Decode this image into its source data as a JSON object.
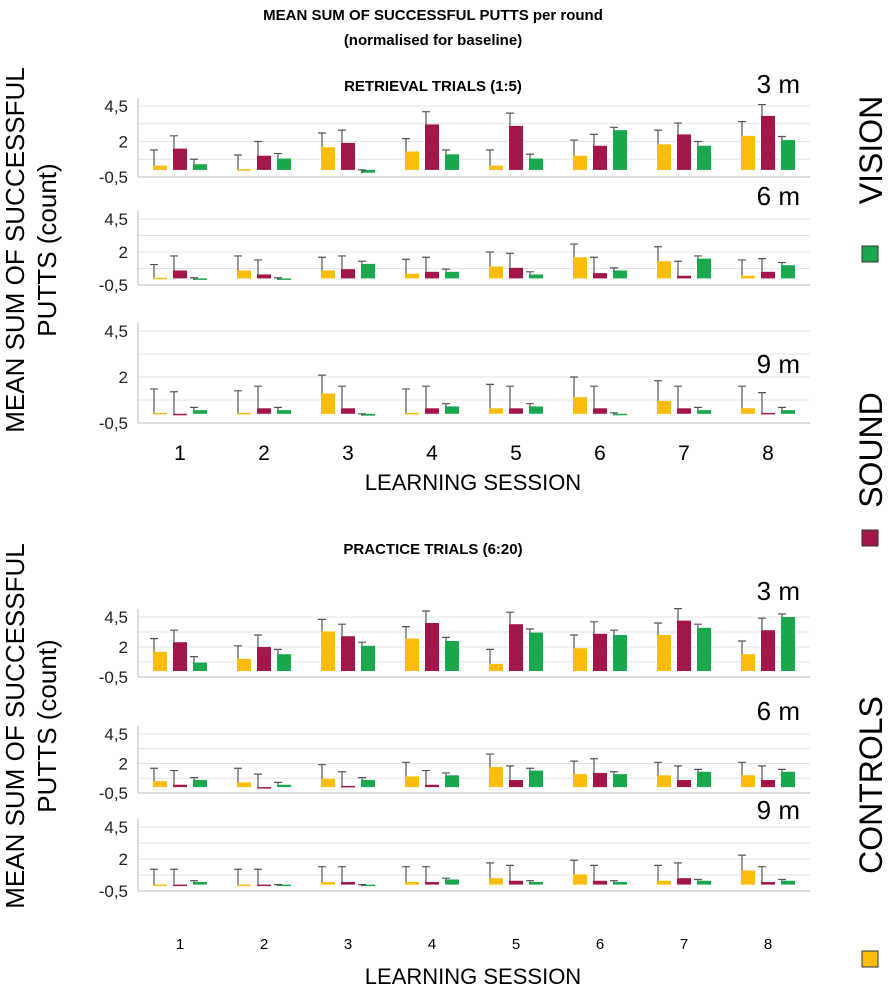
{
  "chart_data": {
    "type": "bar",
    "title": "MEAN SUM OF SUCCESSFUL PUTTS per round",
    "subtitle": "(normalised for baseline)",
    "ylabel_line1": "MEAN SUM OF SUCCESSFUL",
    "ylabel_line2": "PUTTS (count)",
    "xlabel": "LEARNING SESSION",
    "categories": [
      "1",
      "2",
      "3",
      "4",
      "5",
      "6",
      "7",
      "8"
    ],
    "yticks": [
      "4,5",
      "2",
      "-0,5"
    ],
    "ylim": [
      -0.5,
      4.5
    ],
    "legend": [
      {
        "name": "VISION",
        "color": "#1aa84f"
      },
      {
        "name": "SOUND",
        "color": "#a3164a"
      },
      {
        "name": "CONTROLS",
        "color": "#fbbc0a"
      }
    ],
    "colors": {
      "controls": "#fbbc0a",
      "sound": "#a3164a",
      "vision": "#1aa84f"
    },
    "blocks": [
      {
        "title": "RETRIEVAL TRIALS (1:5)",
        "panels": [
          {
            "distance": "3 m",
            "series": [
              {
                "name": "CONTROLS",
                "values": [
                  0.3,
                  0.05,
                  1.6,
                  1.3,
                  0.3,
                  1.0,
                  1.8,
                  2.4
                ],
                "errors": [
                  1.1,
                  1.0,
                  1.0,
                  0.9,
                  1.1,
                  1.1,
                  1.0,
                  1.0
                ]
              },
              {
                "name": "SOUND",
                "values": [
                  1.5,
                  1.0,
                  1.9,
                  3.2,
                  3.1,
                  1.7,
                  2.5,
                  3.8
                ],
                "errors": [
                  0.9,
                  1.0,
                  0.9,
                  0.9,
                  0.9,
                  0.8,
                  0.8,
                  0.8
                ]
              },
              {
                "name": "VISION",
                "values": [
                  0.4,
                  0.8,
                  -0.2,
                  1.1,
                  0.8,
                  2.8,
                  1.7,
                  2.1
                ],
                "errors": [
                  0.35,
                  0.35,
                  0.2,
                  0.3,
                  0.3,
                  0.2,
                  0.3,
                  0.25
                ]
              }
            ]
          },
          {
            "distance": "6 m",
            "series": [
              {
                "name": "CONTROLS",
                "values": [
                  0.05,
                  0.6,
                  0.6,
                  0.35,
                  0.9,
                  1.6,
                  1.3,
                  0.2
                ],
                "errors": [
                  1.0,
                  1.1,
                  1.0,
                  1.1,
                  1.1,
                  1.0,
                  1.1,
                  1.2
                ]
              },
              {
                "name": "SOUND",
                "values": [
                  0.6,
                  0.3,
                  0.7,
                  0.5,
                  0.8,
                  0.4,
                  0.2,
                  0.5
                ],
                "errors": [
                  1.1,
                  1.1,
                  1.0,
                  1.1,
                  1.1,
                  1.2,
                  1.1,
                  1.0
                ]
              },
              {
                "name": "VISION",
                "values": [
                  -0.1,
                  -0.1,
                  1.1,
                  0.5,
                  0.3,
                  0.6,
                  1.5,
                  1.0
                ],
                "errors": [
                  0.15,
                  0.15,
                  0.2,
                  0.2,
                  0.2,
                  0.2,
                  0.2,
                  0.2
                ]
              }
            ]
          },
          {
            "distance": "9 m",
            "series": [
              {
                "name": "CONTROLS",
                "values": [
                  0.05,
                  0.05,
                  1.1,
                  0.05,
                  0.3,
                  0.9,
                  0.7,
                  0.3
                ],
                "errors": [
                  1.3,
                  1.2,
                  1.0,
                  1.3,
                  1.3,
                  1.1,
                  1.1,
                  1.2
                ]
              },
              {
                "name": "SOUND",
                "values": [
                  0.0,
                  0.3,
                  0.3,
                  0.3,
                  0.3,
                  0.3,
                  0.3,
                  0.05
                ],
                "errors": [
                  1.2,
                  1.2,
                  1.2,
                  1.2,
                  1.2,
                  1.2,
                  1.2,
                  1.1
                ]
              },
              {
                "name": "VISION",
                "values": [
                  0.2,
                  0.2,
                  -0.1,
                  0.4,
                  0.4,
                  -0.05,
                  0.2,
                  0.2
                ],
                "errors": [
                  0.15,
                  0.15,
                  0.1,
                  0.15,
                  0.15,
                  0.1,
                  0.15,
                  0.15
                ]
              }
            ]
          }
        ]
      },
      {
        "title": "PRACTICE TRIALS (6:20)",
        "panels": [
          {
            "distance": "3 m",
            "series": [
              {
                "name": "CONTROLS",
                "values": [
                  1.6,
                  1.0,
                  3.3,
                  2.7,
                  0.6,
                  1.9,
                  3.0,
                  1.4
                ],
                "errors": [
                  1.1,
                  1.1,
                  1.0,
                  1.0,
                  1.2,
                  1.1,
                  1.0,
                  1.1
                ]
              },
              {
                "name": "SOUND",
                "values": [
                  2.4,
                  2.0,
                  2.9,
                  4.0,
                  3.9,
                  3.1,
                  4.2,
                  3.4
                ],
                "errors": [
                  1.0,
                  1.0,
                  1.0,
                  1.0,
                  1.0,
                  1.0,
                  1.0,
                  1.0
                ]
              },
              {
                "name": "VISION",
                "values": [
                  0.7,
                  1.4,
                  2.1,
                  2.5,
                  3.2,
                  3.0,
                  3.6,
                  4.5
                ],
                "errors": [
                  0.5,
                  0.4,
                  0.3,
                  0.3,
                  0.3,
                  0.4,
                  0.3,
                  0.25
                ]
              }
            ]
          },
          {
            "distance": "6 m",
            "series": [
              {
                "name": "CONTROLS",
                "values": [
                  0.5,
                  0.4,
                  0.7,
                  0.9,
                  1.7,
                  1.1,
                  1.0,
                  1.0
                ],
                "errors": [
                  1.1,
                  1.2,
                  1.2,
                  1.2,
                  1.1,
                  1.1,
                  1.1,
                  1.1
                ]
              },
              {
                "name": "SOUND",
                "values": [
                  0.2,
                  -0.1,
                  0.1,
                  0.2,
                  0.6,
                  1.2,
                  0.6,
                  0.6
                ],
                "errors": [
                  1.2,
                  1.2,
                  1.2,
                  1.2,
                  1.2,
                  1.2,
                  1.2,
                  1.2
                ]
              },
              {
                "name": "VISION",
                "values": [
                  0.6,
                  0.2,
                  0.6,
                  1.0,
                  1.4,
                  1.1,
                  1.3,
                  1.3
                ],
                "errors": [
                  0.2,
                  0.2,
                  0.2,
                  0.2,
                  0.2,
                  0.2,
                  0.2,
                  0.2
                ]
              }
            ]
          },
          {
            "distance": "9 m",
            "series": [
              {
                "name": "CONTROLS",
                "values": [
                  0.0,
                  0.0,
                  0.2,
                  0.2,
                  0.5,
                  0.8,
                  0.3,
                  1.1
                ],
                "errors": [
                  1.2,
                  1.2,
                  1.2,
                  1.2,
                  1.2,
                  1.1,
                  1.2,
                  1.2
                ]
              },
              {
                "name": "SOUND",
                "values": [
                  0.0,
                  0.0,
                  0.2,
                  0.2,
                  0.3,
                  0.3,
                  0.5,
                  0.2
                ],
                "errors": [
                  1.2,
                  1.2,
                  1.2,
                  1.2,
                  1.2,
                  1.2,
                  1.2,
                  1.2
                ]
              },
              {
                "name": "VISION",
                "values": [
                  0.2,
                  -0.1,
                  -0.1,
                  0.4,
                  0.2,
                  0.2,
                  0.3,
                  0.3
                ],
                "errors": [
                  0.1,
                  0.1,
                  0.1,
                  0.1,
                  0.1,
                  0.1,
                  0.1,
                  0.1
                ]
              }
            ]
          }
        ]
      }
    ]
  }
}
